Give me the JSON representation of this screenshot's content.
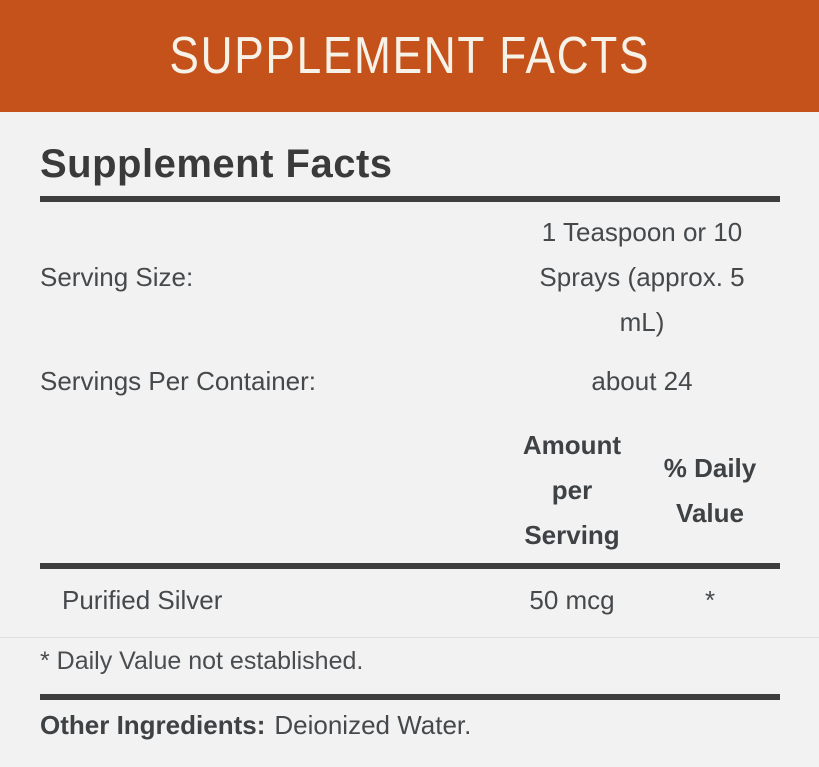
{
  "banner": {
    "title": "SUPPLEMENT FACTS"
  },
  "panel": {
    "heading": "Supplement Facts",
    "serving_rows": [
      {
        "label": "Serving Size:",
        "value": "1 Teaspoon or 10 Sprays (approx. 5 mL)"
      },
      {
        "label": "Servings Per Container:",
        "value": "about 24"
      }
    ],
    "columns": {
      "amount": "Amount per Serving",
      "daily_value": "% Daily Value"
    },
    "ingredients": [
      {
        "name": "Purified Silver",
        "amount": "50 mcg",
        "daily_value": "*"
      }
    ],
    "footnote": "* Daily Value not established.",
    "other_ingredients": {
      "label": "Other Ingredients:",
      "value": "Deionized Water."
    }
  },
  "colors": {
    "accent": "#c5521b",
    "banner_text": "#f7f2e8",
    "background": "#f2f2f2",
    "rule_dark": "#3e3e3e",
    "rule_light": "#e0e0e0",
    "text": "#46494c"
  }
}
